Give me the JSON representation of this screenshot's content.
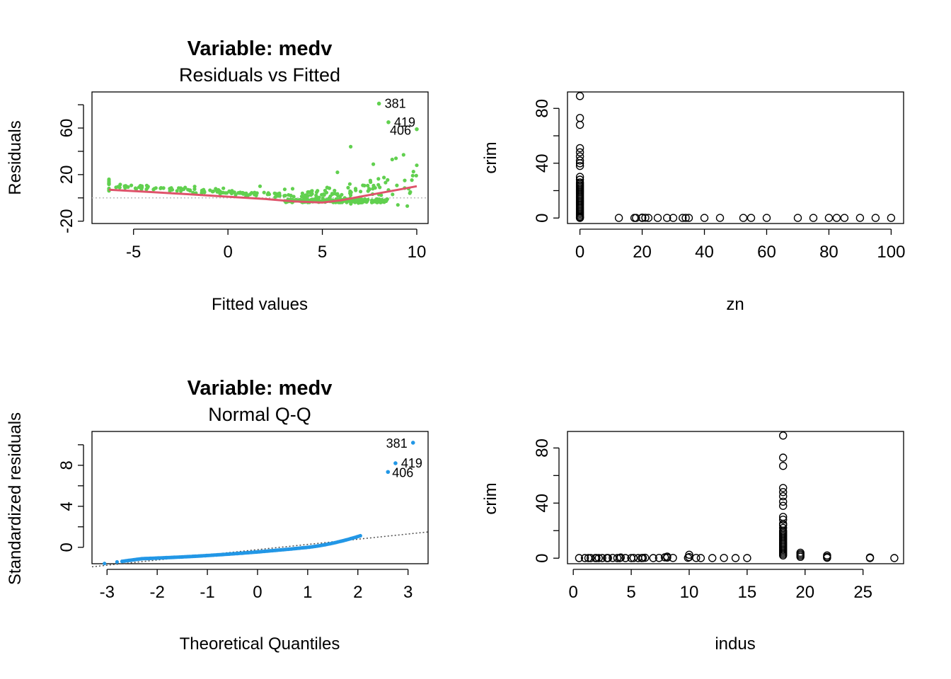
{
  "colors": {
    "residuals": "#61D04F",
    "smooth": "#DF536B",
    "qq": "#2297E6",
    "ref": "#BEBEBE",
    "qqline": "#4D4D4D",
    "scatter": "#000000"
  },
  "chart_data": [
    {
      "type": "scatter",
      "title": "Variable:  medv",
      "subtitle": "Residuals vs Fitted",
      "xlabel": "Fitted values",
      "ylabel": "Residuals",
      "xlim": [
        -7.2,
        10.6
      ],
      "ylim": [
        -22,
        91
      ],
      "xticks": [
        -5,
        0,
        5,
        10
      ],
      "yticks": [
        -20,
        20,
        60
      ],
      "yticks_minor": [
        -20,
        0,
        20,
        40,
        60,
        80
      ],
      "labeled_points": [
        {
          "label": "381",
          "x": 8.0,
          "y": 81
        },
        {
          "label": "419",
          "x": 8.5,
          "y": 65
        },
        {
          "label": "406",
          "x": 10.0,
          "y": 59
        }
      ],
      "smooth": [
        {
          "x": -6.3,
          "y": 7
        },
        {
          "x": -4,
          "y": 5
        },
        {
          "x": -2,
          "y": 3
        },
        {
          "x": 0,
          "y": 1
        },
        {
          "x": 2,
          "y": -1
        },
        {
          "x": 3.5,
          "y": -3
        },
        {
          "x": 5,
          "y": -4
        },
        {
          "x": 6,
          "y": -2
        },
        {
          "x": 7,
          "y": 1
        },
        {
          "x": 8,
          "y": 4
        },
        {
          "x": 9,
          "y": 7
        },
        {
          "x": 10,
          "y": 10
        }
      ]
    },
    {
      "type": "scatter",
      "xlabel": "zn",
      "ylabel": "crim",
      "xlim": [
        -4,
        104
      ],
      "ylim": [
        -4,
        92
      ],
      "xticks": [
        0,
        20,
        40,
        60,
        80,
        100
      ],
      "yticks": [
        0,
        40,
        80
      ],
      "yticks_minor": [
        0,
        20,
        40,
        60,
        80
      ],
      "points": [
        [
          0,
          0.1
        ],
        [
          0,
          0.5
        ],
        [
          0,
          1
        ],
        [
          0,
          2
        ],
        [
          0,
          3
        ],
        [
          0,
          4
        ],
        [
          0,
          5
        ],
        [
          0,
          6
        ],
        [
          0,
          7
        ],
        [
          0,
          8
        ],
        [
          0,
          9
        ],
        [
          0,
          10
        ],
        [
          0,
          11
        ],
        [
          0,
          12
        ],
        [
          0,
          13
        ],
        [
          0,
          14
        ],
        [
          0,
          15
        ],
        [
          0,
          16
        ],
        [
          0,
          17
        ],
        [
          0,
          18
        ],
        [
          0,
          19
        ],
        [
          0,
          20
        ],
        [
          0,
          21
        ],
        [
          0,
          22
        ],
        [
          0,
          23
        ],
        [
          0,
          24
        ],
        [
          0,
          25
        ],
        [
          0,
          26
        ],
        [
          0,
          28
        ],
        [
          0,
          30
        ],
        [
          0,
          38
        ],
        [
          0,
          40
        ],
        [
          0,
          42
        ],
        [
          0,
          45
        ],
        [
          0,
          48
        ],
        [
          0,
          51
        ],
        [
          0,
          68
        ],
        [
          0,
          73
        ],
        [
          0,
          89
        ],
        [
          12.5,
          0.1
        ],
        [
          17.5,
          0.1
        ],
        [
          18,
          0.1
        ],
        [
          20,
          0.1
        ],
        [
          20,
          0.3
        ],
        [
          21,
          0.2
        ],
        [
          22,
          0.1
        ],
        [
          25,
          0.1
        ],
        [
          28,
          0.1
        ],
        [
          30,
          0.1
        ],
        [
          33,
          0.1
        ],
        [
          34,
          0.1
        ],
        [
          35,
          0.1
        ],
        [
          40,
          0.1
        ],
        [
          45,
          0.1
        ],
        [
          52.5,
          0.1
        ],
        [
          55,
          0.1
        ],
        [
          60,
          0.1
        ],
        [
          70,
          0.1
        ],
        [
          75,
          0.1
        ],
        [
          80,
          0.1
        ],
        [
          82.5,
          0.1
        ],
        [
          85,
          0.1
        ],
        [
          90,
          0.1
        ],
        [
          95,
          0.1
        ],
        [
          100,
          0.1
        ]
      ]
    },
    {
      "type": "scatter",
      "title": "Variable:  medv",
      "subtitle": "Normal Q-Q",
      "xlabel": "Theoretical Quantiles",
      "ylabel": "Standardized residuals",
      "xlim": [
        -3.3,
        3.4
      ],
      "ylim": [
        -1.6,
        11.3
      ],
      "xticks": [
        -3,
        -2,
        -1,
        0,
        1,
        2,
        3
      ],
      "yticks": [
        0,
        4,
        8
      ],
      "yticks_minor": [
        0,
        2,
        4,
        6,
        8,
        10
      ],
      "labeled_points": [
        {
          "label": "381",
          "x": 3.1,
          "y": 10.2
        },
        {
          "label": "419",
          "x": 2.75,
          "y": 8.2
        },
        {
          "label": "406",
          "x": 2.6,
          "y": 7.35
        }
      ],
      "qq_line": {
        "x": [
          -3.3,
          3.4
        ],
        "y": [
          -1.9,
          1.5
        ]
      }
    },
    {
      "type": "scatter",
      "xlabel": "indus",
      "ylabel": "crim",
      "xlim": [
        -0.5,
        28.5
      ],
      "ylim": [
        -4,
        92
      ],
      "xticks": [
        0,
        5,
        10,
        15,
        20,
        25
      ],
      "yticks": [
        0,
        40,
        80
      ],
      "yticks_minor": [
        0,
        20,
        40,
        60,
        80
      ],
      "points": [
        [
          0.5,
          0.1
        ],
        [
          1,
          0.1
        ],
        [
          1.3,
          0.1
        ],
        [
          1.5,
          0.1
        ],
        [
          1.9,
          0.1
        ],
        [
          2,
          0.1
        ],
        [
          2.2,
          0.1
        ],
        [
          2.5,
          0.1
        ],
        [
          2.9,
          0.1
        ],
        [
          3,
          0.1
        ],
        [
          3.4,
          0.2
        ],
        [
          3.8,
          0.1
        ],
        [
          4,
          0.1
        ],
        [
          4.1,
          0.5
        ],
        [
          4.5,
          0.1
        ],
        [
          5,
          0.1
        ],
        [
          5.2,
          0.2
        ],
        [
          5.6,
          0.1
        ],
        [
          5.9,
          0.1
        ],
        [
          6,
          0.2
        ],
        [
          6.2,
          0.3
        ],
        [
          6.9,
          0.1
        ],
        [
          7.4,
          0.2
        ],
        [
          7.9,
          0.6
        ],
        [
          8.1,
          0.4
        ],
        [
          8.1,
          1.2
        ],
        [
          8.6,
          0.2
        ],
        [
          9.9,
          0.3
        ],
        [
          10,
          2.5
        ],
        [
          10,
          0.8
        ],
        [
          10.6,
          0.2
        ],
        [
          11,
          0.1
        ],
        [
          12,
          0.1
        ],
        [
          13,
          0.2
        ],
        [
          14,
          0.1
        ],
        [
          15,
          0.1
        ],
        [
          18.1,
          2
        ],
        [
          18.1,
          3
        ],
        [
          18.1,
          4
        ],
        [
          18.1,
          5
        ],
        [
          18.1,
          6
        ],
        [
          18.1,
          7
        ],
        [
          18.1,
          8
        ],
        [
          18.1,
          9
        ],
        [
          18.1,
          10
        ],
        [
          18.1,
          11
        ],
        [
          18.1,
          12
        ],
        [
          18.1,
          13
        ],
        [
          18.1,
          14
        ],
        [
          18.1,
          15
        ],
        [
          18.1,
          16
        ],
        [
          18.1,
          17
        ],
        [
          18.1,
          18
        ],
        [
          18.1,
          19
        ],
        [
          18.1,
          20
        ],
        [
          18.1,
          22
        ],
        [
          18.1,
          24
        ],
        [
          18.1,
          25
        ],
        [
          18.1,
          28
        ],
        [
          18.1,
          30
        ],
        [
          18.1,
          38
        ],
        [
          18.1,
          41
        ],
        [
          18.1,
          45
        ],
        [
          18.1,
          48
        ],
        [
          18.1,
          51
        ],
        [
          18.1,
          67
        ],
        [
          18.1,
          73
        ],
        [
          18.1,
          89
        ],
        [
          19.6,
          1
        ],
        [
          19.6,
          2
        ],
        [
          19.6,
          3
        ],
        [
          19.6,
          4
        ],
        [
          21.9,
          0.3
        ],
        [
          21.9,
          1
        ],
        [
          21.9,
          2
        ],
        [
          25.6,
          0.1
        ],
        [
          25.6,
          0.5
        ],
        [
          27.7,
          0.1
        ]
      ]
    }
  ]
}
